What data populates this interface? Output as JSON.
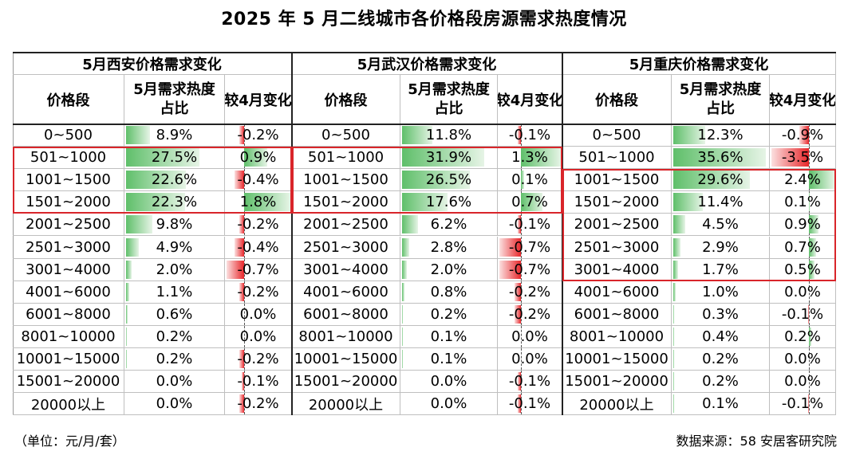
{
  "title": "2025 年 5 月二线城市各价格段房源需求热度情况",
  "footer": {
    "unit": "（单位：元/月/套）",
    "source": "数据来源：58 安居客研究院"
  },
  "column_headers": {
    "price_band": "价格段",
    "share": "5月需求热度占比",
    "change": "较4月变化"
  },
  "chart_data": {
    "type": "table",
    "title": "2025 年 5 月二线城市各价格段房源需求热度情况",
    "price_bands": [
      "0~500",
      "501~1000",
      "1001~1500",
      "1501~2000",
      "2001~2500",
      "2501~3000",
      "3001~4000",
      "4001~6000",
      "6001~8000",
      "8001~10000",
      "10001~15000",
      "15001~20000",
      "20000以上"
    ],
    "cities": [
      {
        "group_label": "5月西安价格需求变化",
        "share": [
          "8.9%",
          "27.5%",
          "22.6%",
          "22.3%",
          "9.8%",
          "4.9%",
          "2.0%",
          "1.1%",
          "0.6%",
          "0.2%",
          "0.2%",
          "0.0%",
          "0.0%"
        ],
        "share_values": [
          8.9,
          27.5,
          22.6,
          22.3,
          9.8,
          4.9,
          2.0,
          1.1,
          0.6,
          0.2,
          0.2,
          0.0,
          0.0
        ],
        "change": [
          "-0.2%",
          "0.9%",
          "-0.4%",
          "1.8%",
          "-0.2%",
          "-0.4%",
          "-0.7%",
          "-0.2%",
          "0.0%",
          "0.0%",
          "-0.2%",
          "-0.1%",
          "-0.2%"
        ],
        "change_values": [
          -0.2,
          0.9,
          -0.4,
          1.8,
          -0.2,
          -0.4,
          -0.7,
          -0.2,
          0.0,
          0.0,
          -0.2,
          -0.1,
          -0.2
        ],
        "highlight_rows": [
          1,
          3
        ]
      },
      {
        "group_label": "5月武汉价格需求变化",
        "share": [
          "11.8%",
          "31.9%",
          "26.5%",
          "17.6%",
          "6.2%",
          "2.8%",
          "2.0%",
          "0.8%",
          "0.2%",
          "0.1%",
          "0.1%",
          "0.0%",
          "0.0%"
        ],
        "share_values": [
          11.8,
          31.9,
          26.5,
          17.6,
          6.2,
          2.8,
          2.0,
          0.8,
          0.2,
          0.1,
          0.1,
          0.0,
          0.0
        ],
        "change": [
          "-0.1%",
          "1.3%",
          "0.1%",
          "0.7%",
          "-0.1%",
          "-0.7%",
          "-0.7%",
          "-0.2%",
          "-0.2%",
          "0.0%",
          "0.0%",
          "-0.1%",
          "-0.1%"
        ],
        "change_values": [
          -0.1,
          1.3,
          0.1,
          0.7,
          -0.1,
          -0.7,
          -0.7,
          -0.2,
          -0.2,
          0.0,
          0.0,
          -0.1,
          -0.1
        ],
        "highlight_rows": [
          1,
          3
        ]
      },
      {
        "group_label": "5月重庆价格需求变化",
        "share": [
          "12.3%",
          "35.6%",
          "29.6%",
          "11.4%",
          "4.5%",
          "2.9%",
          "1.7%",
          "1.0%",
          "0.3%",
          "0.4%",
          "0.2%",
          "0.2%",
          "0.1%"
        ],
        "share_values": [
          12.3,
          35.6,
          29.6,
          11.4,
          4.5,
          2.9,
          1.7,
          1.0,
          0.3,
          0.4,
          0.2,
          0.2,
          0.1
        ],
        "change": [
          "-0.9%",
          "-3.5%",
          "2.4%",
          "0.1%",
          "0.9%",
          "0.7%",
          "0.5%",
          "0.0%",
          "-0.1%",
          "0.2%",
          "0.0%",
          "0.0%",
          "-0.1%"
        ],
        "change_values": [
          -0.9,
          -3.5,
          2.4,
          0.1,
          0.9,
          0.7,
          0.5,
          0.0,
          -0.1,
          0.2,
          0.0,
          0.0,
          -0.1
        ],
        "highlight_rows": [
          2,
          6
        ]
      }
    ],
    "colors": {
      "positive": "#5fbf6a",
      "negative": "#e8272b",
      "highlight_border": "#d9252a"
    }
  }
}
